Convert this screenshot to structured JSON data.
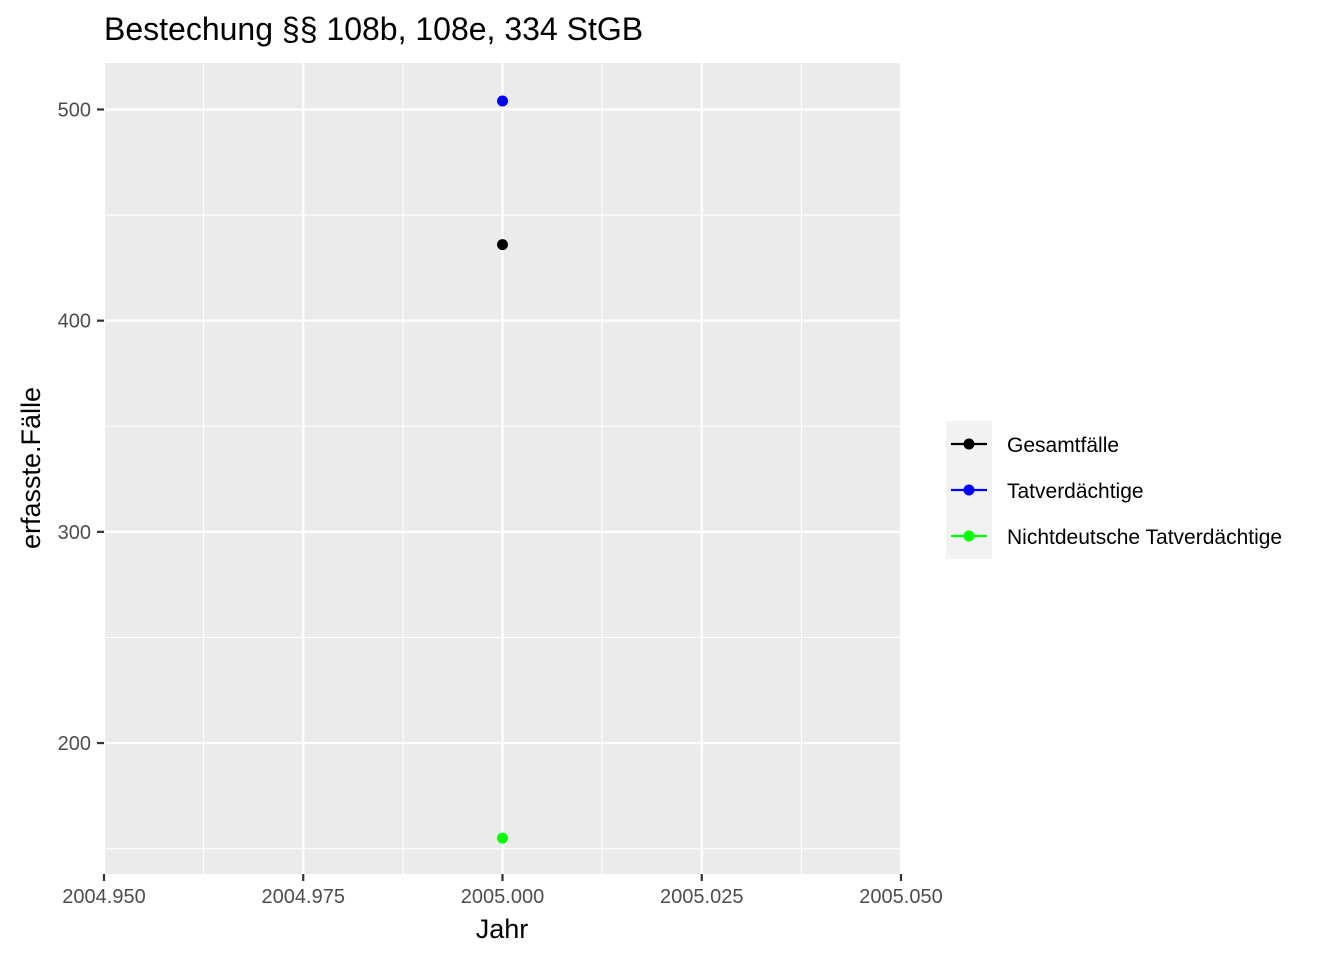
{
  "chart_data": {
    "type": "scatter",
    "title": "Bestechung §§ 108b, 108e, 334 StGB",
    "xlabel": "Jahr",
    "ylabel": "erfasste.Fälle",
    "xlim": [
      2004.95,
      2005.05
    ],
    "ylim": [
      138,
      522
    ],
    "x_ticks": [
      2004.95,
      2004.975,
      2005.0,
      2005.025,
      2005.05
    ],
    "x_tick_labels": [
      "2004.950",
      "2004.975",
      "2005.000",
      "2005.025",
      "2005.050"
    ],
    "y_ticks": [
      200,
      300,
      400,
      500
    ],
    "y_tick_labels": [
      "200",
      "300",
      "400",
      "500"
    ],
    "grid": true,
    "legend_position": "right",
    "series": [
      {
        "name": "Gesamtfälle",
        "color": "#000000",
        "points": [
          {
            "x": 2005.0,
            "y": 436
          }
        ]
      },
      {
        "name": "Tatverdächtige",
        "color": "#0000ff",
        "points": [
          {
            "x": 2005.0,
            "y": 504
          }
        ]
      },
      {
        "name": "Nichtdeutsche Tatverdächtige",
        "color": "#00ff00",
        "points": [
          {
            "x": 2005.0,
            "y": 155
          }
        ]
      }
    ]
  }
}
